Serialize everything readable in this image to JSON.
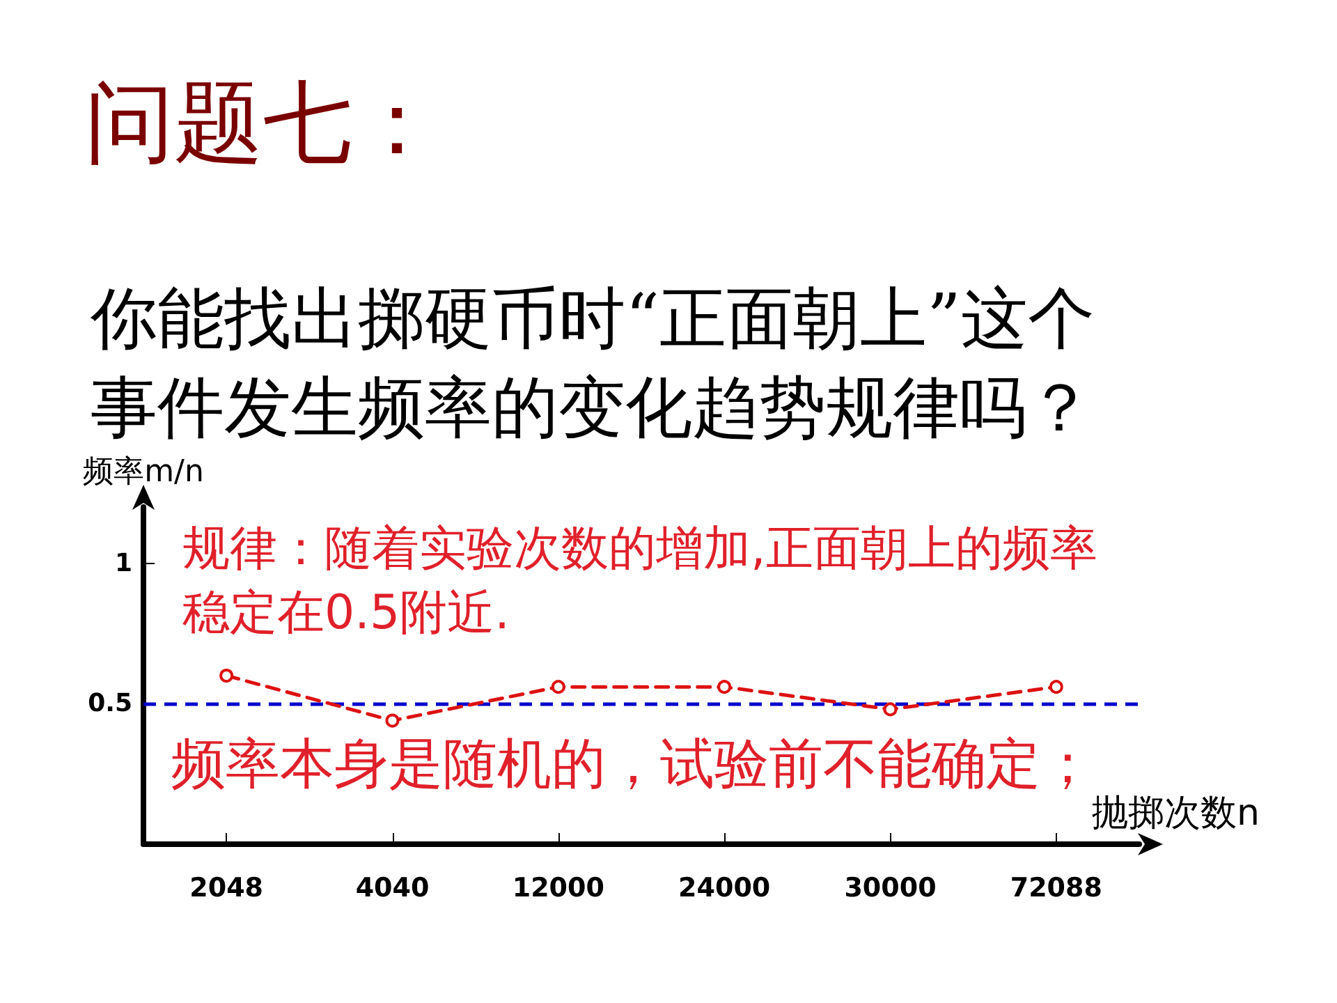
{
  "chart_data": {
    "type": "line",
    "title": "问题七：",
    "subtitle": "你能找出掷硬币时“正面朝上”这个事件发生频率的变化趋势规律吗？",
    "xlabel": "抛掷次数n",
    "ylabel": "频率m/n",
    "categories": [
      "2048",
      "4040",
      "12000",
      "24000",
      "30000",
      "72088"
    ],
    "series": [
      {
        "color": "#dd1111",
        "values": [
          0.6,
          0.44,
          0.56,
          0.56,
          0.48,
          0.56
        ]
      }
    ],
    "ylim": [
      0,
      1.2
    ],
    "yticks": [
      0.5,
      1
    ],
    "ref_lines": [
      {
        "axis": "y",
        "value": 0.5,
        "color": "#0000cc",
        "line_style": "dashed"
      }
    ],
    "annotations": [
      "规律：随着实验次数的增加,正面朝上的频率稳定在0.5附近.",
      "频率本身是随机的，试验前不能确定；"
    ],
    "marker": "circle",
    "line_style": "dashed"
  }
}
